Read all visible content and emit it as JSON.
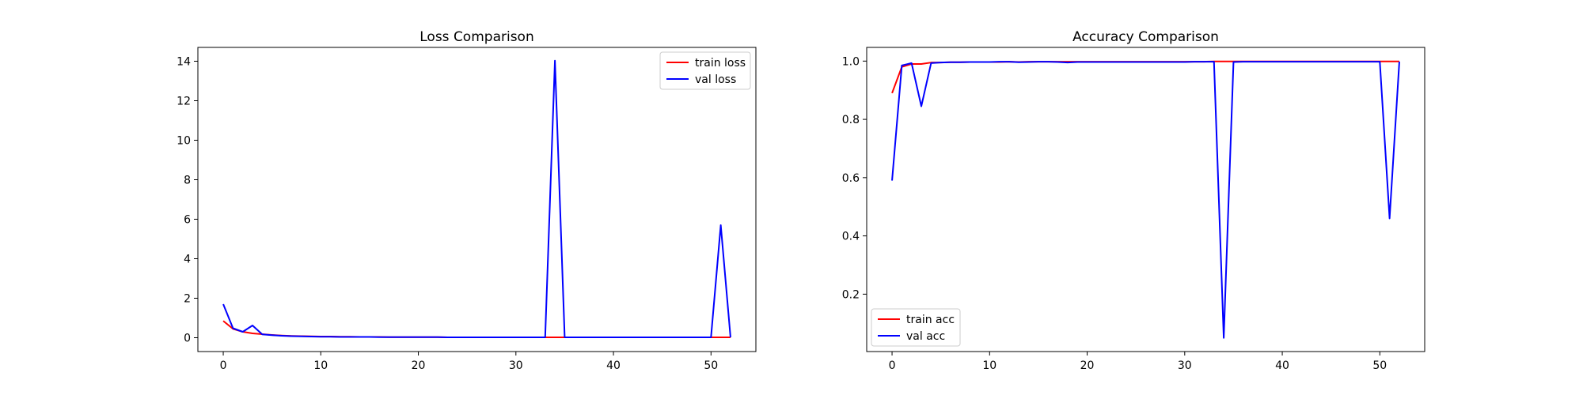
{
  "chart_data": [
    {
      "type": "line",
      "title": "Loss Comparison",
      "xlabel": "",
      "ylabel": "",
      "xlim": [
        -2.6,
        54.6
      ],
      "ylim": [
        -0.7,
        14.7
      ],
      "xticks": [
        0,
        10,
        20,
        30,
        40,
        50
      ],
      "yticks": [
        0,
        2,
        4,
        6,
        8,
        10,
        12,
        14
      ],
      "grid": false,
      "legend_position": "top-right",
      "series": [
        {
          "name": "train loss",
          "color": "#ff0000",
          "x": [
            0,
            1,
            2,
            3,
            4,
            5,
            6,
            7,
            8,
            9,
            10,
            11,
            12,
            13,
            14,
            15,
            16,
            17,
            18,
            19,
            20,
            21,
            22,
            23,
            24,
            25,
            26,
            27,
            28,
            29,
            30,
            31,
            32,
            33,
            34,
            35,
            36,
            37,
            38,
            39,
            40,
            41,
            42,
            43,
            44,
            45,
            46,
            47,
            48,
            49,
            50,
            51,
            52
          ],
          "y": [
            0.85,
            0.45,
            0.3,
            0.22,
            0.18,
            0.14,
            0.11,
            0.09,
            0.08,
            0.07,
            0.06,
            0.06,
            0.05,
            0.05,
            0.04,
            0.04,
            0.04,
            0.03,
            0.03,
            0.03,
            0.03,
            0.03,
            0.03,
            0.02,
            0.02,
            0.02,
            0.02,
            0.02,
            0.02,
            0.02,
            0.02,
            0.02,
            0.02,
            0.02,
            0.02,
            0.02,
            0.02,
            0.02,
            0.02,
            0.02,
            0.02,
            0.02,
            0.02,
            0.02,
            0.02,
            0.02,
            0.02,
            0.02,
            0.02,
            0.02,
            0.02,
            0.02,
            0.02
          ]
        },
        {
          "name": "val loss",
          "color": "#0000ff",
          "x": [
            0,
            1,
            2,
            3,
            4,
            5,
            6,
            7,
            8,
            9,
            10,
            11,
            12,
            13,
            14,
            15,
            16,
            17,
            18,
            19,
            20,
            21,
            22,
            23,
            24,
            25,
            26,
            27,
            28,
            29,
            30,
            31,
            32,
            33,
            34,
            35,
            36,
            37,
            38,
            39,
            40,
            41,
            42,
            43,
            44,
            45,
            46,
            47,
            48,
            49,
            50,
            51,
            52
          ],
          "y": [
            1.7,
            0.48,
            0.3,
            0.62,
            0.17,
            0.13,
            0.1,
            0.08,
            0.07,
            0.06,
            0.05,
            0.05,
            0.04,
            0.04,
            0.04,
            0.04,
            0.03,
            0.03,
            0.03,
            0.03,
            0.03,
            0.03,
            0.03,
            0.02,
            0.02,
            0.02,
            0.02,
            0.02,
            0.02,
            0.02,
            0.02,
            0.02,
            0.02,
            0.02,
            14.03,
            0.02,
            0.02,
            0.02,
            0.02,
            0.02,
            0.02,
            0.02,
            0.02,
            0.02,
            0.02,
            0.02,
            0.02,
            0.02,
            0.02,
            0.02,
            0.02,
            5.7,
            0.02
          ]
        }
      ]
    },
    {
      "type": "line",
      "title": "Accuracy Comparison",
      "xlabel": "",
      "ylabel": "",
      "xlim": [
        -2.6,
        54.6
      ],
      "ylim": [
        0.003,
        1.047
      ],
      "xticks": [
        0,
        10,
        20,
        30,
        40,
        50
      ],
      "yticks": [
        0.2,
        0.4,
        0.6,
        0.8,
        1.0
      ],
      "ytick_labels": [
        "0.2",
        "0.4",
        "0.6",
        "0.8",
        "1.0"
      ],
      "grid": false,
      "legend_position": "bottom-left",
      "series": [
        {
          "name": "train acc",
          "color": "#ff0000",
          "x": [
            0,
            1,
            2,
            3,
            4,
            5,
            6,
            7,
            8,
            9,
            10,
            11,
            12,
            13,
            14,
            15,
            16,
            17,
            18,
            19,
            20,
            21,
            22,
            23,
            24,
            25,
            26,
            27,
            28,
            29,
            30,
            31,
            32,
            33,
            34,
            35,
            36,
            37,
            38,
            39,
            40,
            41,
            42,
            43,
            44,
            45,
            46,
            47,
            48,
            49,
            50,
            51,
            52
          ],
          "y": [
            0.89,
            0.98,
            0.99,
            0.99,
            0.995,
            0.995,
            0.996,
            0.996,
            0.997,
            0.997,
            0.997,
            0.997,
            0.998,
            0.997,
            0.998,
            0.998,
            0.998,
            0.998,
            0.998,
            0.998,
            0.998,
            0.998,
            0.998,
            0.998,
            0.998,
            0.998,
            0.998,
            0.998,
            0.998,
            0.998,
            0.998,
            0.998,
            0.998,
            0.999,
            0.999,
            0.999,
            0.999,
            0.999,
            0.999,
            0.999,
            0.999,
            0.999,
            0.999,
            0.999,
            0.999,
            0.999,
            0.999,
            0.999,
            0.999,
            0.999,
            0.999,
            0.999,
            0.999
          ]
        },
        {
          "name": "val acc",
          "color": "#0000ff",
          "x": [
            0,
            1,
            2,
            3,
            4,
            5,
            6,
            7,
            8,
            9,
            10,
            11,
            12,
            13,
            14,
            15,
            16,
            17,
            18,
            19,
            20,
            21,
            22,
            23,
            24,
            25,
            26,
            27,
            28,
            29,
            30,
            31,
            32,
            33,
            34,
            35,
            36,
            37,
            38,
            39,
            40,
            41,
            42,
            43,
            44,
            45,
            46,
            47,
            48,
            49,
            50,
            51,
            52
          ],
          "y": [
            0.59,
            0.985,
            0.993,
            0.845,
            0.993,
            0.995,
            0.996,
            0.996,
            0.997,
            0.997,
            0.997,
            0.998,
            0.998,
            0.996,
            0.997,
            0.998,
            0.998,
            0.997,
            0.995,
            0.997,
            0.997,
            0.997,
            0.997,
            0.997,
            0.997,
            0.997,
            0.997,
            0.997,
            0.997,
            0.997,
            0.997,
            0.998,
            0.998,
            0.998,
            0.05,
            0.997,
            0.998,
            0.998,
            0.998,
            0.998,
            0.998,
            0.998,
            0.998,
            0.998,
            0.998,
            0.998,
            0.998,
            0.998,
            0.998,
            0.998,
            0.998,
            0.46,
            0.998
          ]
        }
      ]
    }
  ]
}
